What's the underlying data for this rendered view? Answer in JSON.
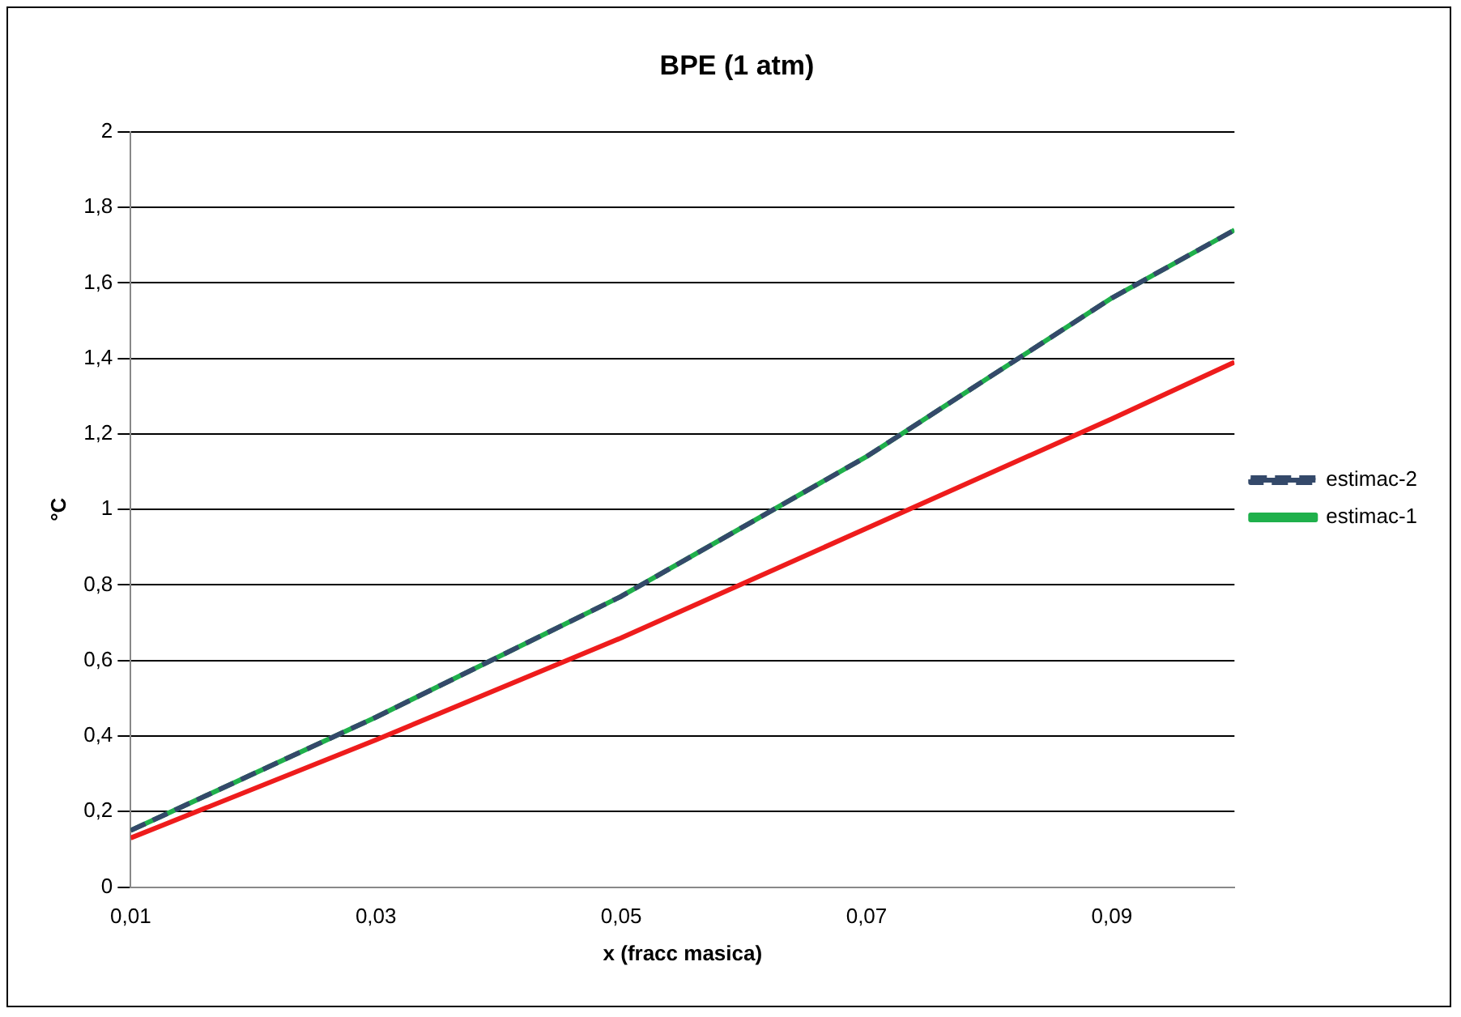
{
  "chart_data": {
    "type": "line",
    "title": "BPE (1 atm)",
    "xlabel": "x (fracc masica)",
    "ylabel": "°C",
    "xlim": [
      0.01,
      0.1
    ],
    "xticks": [
      {
        "value": 0.01,
        "label": "0,01"
      },
      {
        "value": 0.03,
        "label": "0,03"
      },
      {
        "value": 0.05,
        "label": "0,05"
      },
      {
        "value": 0.07,
        "label": "0,07"
      },
      {
        "value": 0.09,
        "label": "0,09"
      }
    ],
    "ylim": [
      0,
      2
    ],
    "yticks": [
      {
        "value": 0,
        "label": "0"
      },
      {
        "value": 0.2,
        "label": "0,2"
      },
      {
        "value": 0.4,
        "label": "0,4"
      },
      {
        "value": 0.6,
        "label": "0,6"
      },
      {
        "value": 0.8,
        "label": "0,8"
      },
      {
        "value": 1,
        "label": "1"
      },
      {
        "value": 1.2,
        "label": "1,2"
      },
      {
        "value": 1.4,
        "label": "1,4"
      },
      {
        "value": 1.6,
        "label": "1,6"
      },
      {
        "value": 1.8,
        "label": "1,8"
      },
      {
        "value": 2,
        "label": "2"
      }
    ],
    "x": [
      0.01,
      0.03,
      0.05,
      0.07,
      0.09,
      0.1
    ],
    "grid": "y",
    "legend": "right",
    "marker": "none",
    "series": [
      {
        "name": "estimac-1",
        "color": "#1fb04b",
        "values": [
          0.15,
          0.45,
          0.77,
          1.14,
          1.56,
          1.74
        ],
        "line_style": "solid"
      },
      {
        "name": "estimac-2",
        "color": "#34496a",
        "values": [
          0.15,
          0.45,
          0.77,
          1.14,
          1.56,
          1.74
        ],
        "line_style": "dashed"
      },
      {
        "color": "#ee1c1c",
        "values": [
          0.13,
          0.39,
          0.66,
          0.95,
          1.24,
          1.39
        ],
        "line_style": "solid"
      }
    ]
  }
}
